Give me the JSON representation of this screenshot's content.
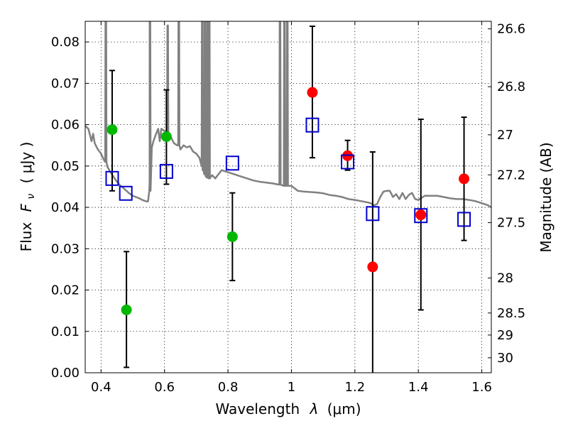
{
  "chart_data": {
    "type": "scatter",
    "title": "",
    "xlabel_text": "Wavelength",
    "xlabel_lambda": "λ",
    "xlabel_unit": "(μm)",
    "ylabel_text": "Flux",
    "ylabel_F": "F",
    "ylabel_nu": "ν",
    "ylabel_unit": "( μJy )",
    "y2label": "Magnitude (AB)",
    "xlim": [
      0.35,
      1.63
    ],
    "ylim": [
      0.0,
      0.085
    ],
    "grid": true,
    "xticks": [
      {
        "value": 0.4,
        "label": "0.4"
      },
      {
        "value": 0.6,
        "label": "0.6"
      },
      {
        "value": 0.8,
        "label": "0.8"
      },
      {
        "value": 1.0,
        "label": "1"
      },
      {
        "value": 1.2,
        "label": "1.2"
      },
      {
        "value": 1.4,
        "label": "1.4"
      },
      {
        "value": 1.6,
        "label": "1.6"
      }
    ],
    "yticks": [
      {
        "value": 0.0,
        "label": "0.00"
      },
      {
        "value": 0.01,
        "label": "0.01"
      },
      {
        "value": 0.02,
        "label": "0.02"
      },
      {
        "value": 0.03,
        "label": "0.03"
      },
      {
        "value": 0.04,
        "label": "0.04"
      },
      {
        "value": 0.05,
        "label": "0.05"
      },
      {
        "value": 0.06,
        "label": "0.06"
      },
      {
        "value": 0.07,
        "label": "0.07"
      },
      {
        "value": 0.08,
        "label": "0.08"
      }
    ],
    "y2ticks": [
      {
        "mag": 26.6,
        "label": "26.6"
      },
      {
        "mag": 26.8,
        "label": "26.8"
      },
      {
        "mag": 27.0,
        "label": "27"
      },
      {
        "mag": 27.2,
        "label": "27.2"
      },
      {
        "mag": 27.5,
        "label": "27.5"
      },
      {
        "mag": 28.0,
        "label": "28"
      },
      {
        "mag": 28.5,
        "label": "28.5"
      },
      {
        "mag": 29.0,
        "label": "29"
      },
      {
        "mag": 30.0,
        "label": "30"
      }
    ],
    "colors": {
      "green": "#00b800",
      "red": "#ff0000",
      "blue": "#0000cc",
      "model": "#808080",
      "errorbar": "#000000"
    },
    "series": [
      {
        "name": "green-points",
        "marker": "circle",
        "points": [
          {
            "x": 0.435,
            "y": 0.0588,
            "err_low": 0.044,
            "err_high": 0.0731
          },
          {
            "x": 0.48,
            "y": 0.0152,
            "err_low": 0.0013,
            "err_high": 0.0293
          },
          {
            "x": 0.606,
            "y": 0.0571,
            "err_low": 0.0456,
            "err_high": 0.0684
          },
          {
            "x": 0.814,
            "y": 0.0329,
            "err_low": 0.0223,
            "err_high": 0.0435
          }
        ]
      },
      {
        "name": "red-points",
        "marker": "circle",
        "points": [
          {
            "x": 1.066,
            "y": 0.0678,
            "err_low": 0.052,
            "err_high": 0.0838
          },
          {
            "x": 1.177,
            "y": 0.0525,
            "err_low": 0.049,
            "err_high": 0.0562
          },
          {
            "x": 1.256,
            "y": 0.0256,
            "err_low": 0.0,
            "err_high": 0.0534
          },
          {
            "x": 1.408,
            "y": 0.0382,
            "err_low": 0.0152,
            "err_high": 0.0613
          },
          {
            "x": 1.544,
            "y": 0.0469,
            "err_low": 0.032,
            "err_high": 0.0618
          }
        ]
      },
      {
        "name": "model-photometry",
        "marker": "open-square",
        "points": [
          {
            "x": 0.435,
            "y": 0.047
          },
          {
            "x": 0.478,
            "y": 0.0434
          },
          {
            "x": 0.606,
            "y": 0.0487
          },
          {
            "x": 0.814,
            "y": 0.0507
          },
          {
            "x": 1.066,
            "y": 0.0599
          },
          {
            "x": 1.177,
            "y": 0.051
          },
          {
            "x": 1.256,
            "y": 0.0385
          },
          {
            "x": 1.408,
            "y": 0.038
          },
          {
            "x": 1.544,
            "y": 0.0371
          }
        ]
      }
    ],
    "model_spectrum": [
      [
        0.35,
        0.0597
      ],
      [
        0.36,
        0.059
      ],
      [
        0.37,
        0.056
      ],
      [
        0.375,
        0.0578
      ],
      [
        0.38,
        0.0555
      ],
      [
        0.39,
        0.054
      ],
      [
        0.4,
        0.053
      ],
      [
        0.41,
        0.0513
      ],
      [
        0.42,
        0.0498
      ],
      [
        0.43,
        0.0485
      ],
      [
        0.44,
        0.0473
      ],
      [
        0.45,
        0.0462
      ],
      [
        0.46,
        0.0453
      ],
      [
        0.47,
        0.0447
      ],
      [
        0.48,
        0.044
      ],
      [
        0.49,
        0.0433
      ],
      [
        0.5,
        0.0428
      ],
      [
        0.51,
        0.0425
      ],
      [
        0.52,
        0.0422
      ],
      [
        0.53,
        0.0418
      ],
      [
        0.54,
        0.0415
      ],
      [
        0.548,
        0.0414
      ],
      [
        0.553,
        0.046
      ],
      [
        0.556,
        0.052
      ],
      [
        0.56,
        0.0545
      ],
      [
        0.565,
        0.056
      ],
      [
        0.572,
        0.0575
      ],
      [
        0.58,
        0.059
      ],
      [
        0.585,
        0.056
      ],
      [
        0.59,
        0.059
      ],
      [
        0.6,
        0.0585
      ],
      [
        0.61,
        0.058
      ],
      [
        0.62,
        0.057
      ],
      [
        0.63,
        0.0555
      ],
      [
        0.64,
        0.055
      ],
      [
        0.65,
        0.054
      ],
      [
        0.66,
        0.055
      ],
      [
        0.67,
        0.0545
      ],
      [
        0.68,
        0.0548
      ],
      [
        0.69,
        0.0535
      ],
      [
        0.7,
        0.053
      ],
      [
        0.71,
        0.052
      ],
      [
        0.72,
        0.049
      ],
      [
        0.73,
        0.0475
      ],
      [
        0.74,
        0.047
      ],
      [
        0.75,
        0.0478
      ],
      [
        0.76,
        0.047
      ],
      [
        0.78,
        0.049
      ],
      [
        0.8,
        0.0485
      ],
      [
        0.82,
        0.048
      ],
      [
        0.84,
        0.0475
      ],
      [
        0.86,
        0.047
      ],
      [
        0.88,
        0.0465
      ],
      [
        0.9,
        0.0462
      ],
      [
        0.92,
        0.046
      ],
      [
        0.94,
        0.0458
      ],
      [
        0.96,
        0.0455
      ],
      [
        0.98,
        0.0455
      ],
      [
        1.0,
        0.0452
      ],
      [
        1.02,
        0.044
      ],
      [
        1.04,
        0.0438
      ],
      [
        1.06,
        0.0437
      ],
      [
        1.08,
        0.0436
      ],
      [
        1.1,
        0.0434
      ],
      [
        1.12,
        0.043
      ],
      [
        1.14,
        0.0428
      ],
      [
        1.16,
        0.0425
      ],
      [
        1.18,
        0.042
      ],
      [
        1.2,
        0.0418
      ],
      [
        1.22,
        0.0415
      ],
      [
        1.24,
        0.0412
      ],
      [
        1.25,
        0.041
      ],
      [
        1.26,
        0.0405
      ],
      [
        1.27,
        0.0408
      ],
      [
        1.28,
        0.0425
      ],
      [
        1.29,
        0.0438
      ],
      [
        1.3,
        0.044
      ],
      [
        1.31,
        0.044
      ],
      [
        1.32,
        0.0425
      ],
      [
        1.33,
        0.0432
      ],
      [
        1.34,
        0.042
      ],
      [
        1.35,
        0.0435
      ],
      [
        1.36,
        0.042
      ],
      [
        1.37,
        0.043
      ],
      [
        1.38,
        0.0435
      ],
      [
        1.39,
        0.042
      ],
      [
        1.4,
        0.0418
      ],
      [
        1.42,
        0.0428
      ],
      [
        1.44,
        0.0428
      ],
      [
        1.46,
        0.0428
      ],
      [
        1.48,
        0.0425
      ],
      [
        1.5,
        0.0422
      ],
      [
        1.52,
        0.042
      ],
      [
        1.54,
        0.042
      ],
      [
        1.56,
        0.0418
      ],
      [
        1.58,
        0.0415
      ],
      [
        1.6,
        0.041
      ],
      [
        1.62,
        0.0405
      ],
      [
        1.63,
        0.04
      ]
    ],
    "model_spikes": [
      {
        "x": 0.415,
        "top": 0.095,
        "base": 0.051
      },
      {
        "x": 0.554,
        "top": 0.095,
        "base": 0.044
      },
      {
        "x": 0.61,
        "top": 0.084,
        "base": 0.058
      },
      {
        "x": 0.645,
        "top": 0.095,
        "base": 0.055
      },
      {
        "x": 0.719,
        "top": 0.095,
        "base": 0.05
      },
      {
        "x": 0.727,
        "top": 0.095,
        "base": 0.048
      },
      {
        "x": 0.735,
        "top": 0.095,
        "base": 0.0472
      },
      {
        "x": 0.741,
        "top": 0.095,
        "base": 0.047
      },
      {
        "x": 0.964,
        "top": 0.095,
        "base": 0.0455
      },
      {
        "x": 0.978,
        "top": 0.095,
        "base": 0.0452
      },
      {
        "x": 0.987,
        "top": 0.095,
        "base": 0.0452
      }
    ]
  }
}
